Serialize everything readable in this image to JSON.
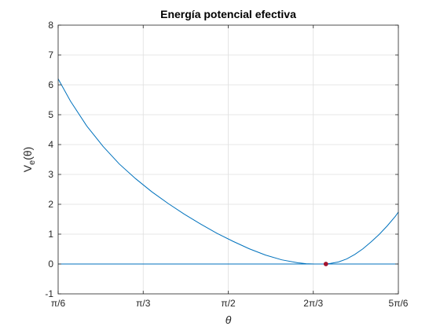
{
  "chart_data": {
    "type": "line",
    "title": "Energía potencial efectiva",
    "xlabel": "θ",
    "ylabel_main": "V",
    "ylabel_sub": "e",
    "ylabel_arg": "(θ)",
    "xlim": [
      0.5236,
      2.618
    ],
    "ylim": [
      -1,
      8
    ],
    "grid": true,
    "x_ticks": [
      {
        "value": 0.5236,
        "label": "π/6"
      },
      {
        "value": 1.0472,
        "label": "π/3"
      },
      {
        "value": 1.5708,
        "label": "π/2"
      },
      {
        "value": 2.0944,
        "label": "2π/3"
      },
      {
        "value": 2.618,
        "label": "5π/6"
      }
    ],
    "y_ticks": [
      {
        "value": -1,
        "label": "-1"
      },
      {
        "value": 0,
        "label": "0"
      },
      {
        "value": 1,
        "label": "1"
      },
      {
        "value": 2,
        "label": "2"
      },
      {
        "value": 3,
        "label": "3"
      },
      {
        "value": 4,
        "label": "4"
      },
      {
        "value": 5,
        "label": "5"
      },
      {
        "value": 6,
        "label": "6"
      },
      {
        "value": 7,
        "label": "7"
      },
      {
        "value": 8,
        "label": "8"
      }
    ],
    "series": [
      {
        "color": "#0072bd",
        "x": [
          0.5236,
          0.6,
          0.7,
          0.8,
          0.9,
          1.0,
          1.1,
          1.2,
          1.3,
          1.4,
          1.5,
          1.6,
          1.7,
          1.8,
          1.9,
          2.0,
          2.05,
          2.1,
          2.15,
          2.172,
          2.2,
          2.25,
          2.3,
          2.35,
          2.4,
          2.45,
          2.5,
          2.55,
          2.6,
          2.618
        ],
        "y": [
          6.2,
          5.45,
          4.62,
          3.94,
          3.35,
          2.86,
          2.42,
          2.03,
          1.67,
          1.34,
          1.03,
          0.76,
          0.51,
          0.3,
          0.14,
          0.04,
          0.01,
          0.0,
          0.0,
          0.0,
          0.02,
          0.07,
          0.17,
          0.32,
          0.51,
          0.74,
          0.99,
          1.28,
          1.6,
          1.74
        ]
      },
      {
        "color": "#0072bd",
        "x": [
          0.5236,
          2.618
        ],
        "y": [
          0,
          0
        ]
      }
    ],
    "points": [
      {
        "x": 2.172,
        "y": 0,
        "color": "#a2142f"
      }
    ]
  }
}
